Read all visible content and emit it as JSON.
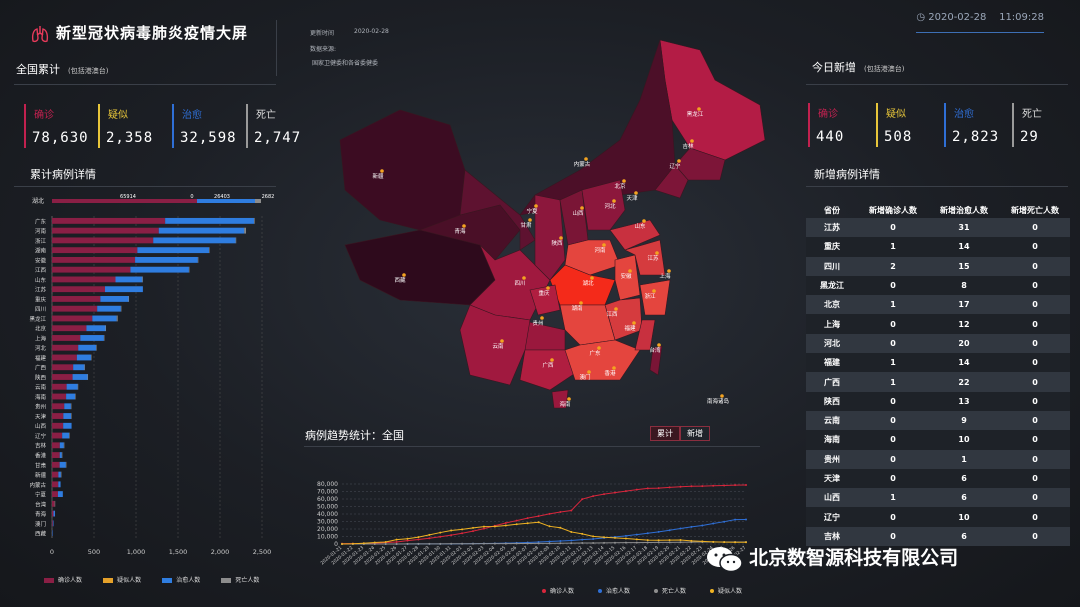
{
  "header": {
    "title": "新型冠状病毒肺炎疫情大屏",
    "update_label": "更新时间",
    "update_time": "2020-02-28",
    "source_label": "数据来源:",
    "source_value": "国家卫健委和各省委健委",
    "clock": "2020-02-28    11:09:28"
  },
  "national": {
    "title": "全国累计",
    "subtitle": "(包括港澳台)",
    "stats": [
      {
        "label": "确诊",
        "value": "78,630",
        "color": "#c2214f"
      },
      {
        "label": "疑似",
        "value": "2,358",
        "color": "#e8c63a"
      },
      {
        "label": "治愈",
        "value": "32,598",
        "color": "#2f6fd6"
      },
      {
        "label": "死亡",
        "value": "2,747",
        "color": "#9a9a9a"
      }
    ]
  },
  "today": {
    "title": "今日新增",
    "subtitle": "(包括港澳台)",
    "stats": [
      {
        "label": "确诊",
        "value": "440",
        "color": "#c2214f"
      },
      {
        "label": "疑似",
        "value": "508",
        "color": "#e8c63a"
      },
      {
        "label": "治愈",
        "value": "2,823",
        "color": "#2f6fd6"
      },
      {
        "label": "死亡",
        "value": "29",
        "color": "#9a9a9a"
      }
    ]
  },
  "bar_panel": {
    "title": "累计病例详情",
    "hubei_label": "湖北",
    "hubei_confirmed": "65914",
    "hubei_suspect": "0",
    "hubei_cured": "26403",
    "hubei_dead": "2682",
    "legend": [
      "确诊人数",
      "疑似人数",
      "治愈人数",
      "死亡人数"
    ]
  },
  "chart_data": [
    {
      "type": "bar",
      "orientation": "horizontal",
      "stacked": true,
      "title": "累计病例详情",
      "categories": [
        "广东",
        "河南",
        "浙江",
        "湖南",
        "安徽",
        "江西",
        "山东",
        "江苏",
        "重庆",
        "四川",
        "黑龙江",
        "北京",
        "上海",
        "河北",
        "福建",
        "广西",
        "陕西",
        "云南",
        "海南",
        "贵州",
        "天津",
        "山西",
        "辽宁",
        "吉林",
        "香港",
        "甘肃",
        "新疆",
        "内蒙古",
        "宁夏",
        "台湾",
        "青海",
        "澳门",
        "西藏"
      ],
      "xticks": [
        "0",
        "500",
        "1,000",
        "1,500",
        "2,000",
        "2,500"
      ],
      "xlim": [
        0,
        2500
      ],
      "series": [
        {
          "name": "确诊人数",
          "color": "#8a1f45",
          "values": [
            1347,
            1271,
            1205,
            1016,
            989,
            934,
            756,
            631,
            576,
            538,
            480,
            410,
            337,
            312,
            296,
            252,
            245,
            174,
            168,
            146,
            135,
            133,
            121,
            93,
            92,
            91,
            76,
            75,
            71,
            32,
            18,
            10,
            1
          ]
        },
        {
          "name": "疑似人数",
          "color": "#e5a12a",
          "values": [
            0,
            0,
            0,
            0,
            0,
            0,
            0,
            0,
            0,
            0,
            0,
            0,
            0,
            0,
            0,
            0,
            0,
            0,
            0,
            0,
            0,
            0,
            0,
            0,
            0,
            0,
            0,
            0,
            0,
            0,
            0,
            0,
            0
          ]
        },
        {
          "name": "治愈人数",
          "color": "#2f7de0",
          "values": [
            1059,
            1018,
            982,
            853,
            747,
            696,
            320,
            451,
            335,
            282,
            290,
            227,
            281,
            214,
            168,
            134,
            178,
            132,
            107,
            79,
            92,
            100,
            83,
            48,
            25,
            74,
            30,
            27,
            58,
            0,
            18,
            8,
            1
          ]
        },
        {
          "name": "死亡人数",
          "color": "#8c8c8c",
          "values": [
            7,
            20,
            1,
            4,
            6,
            1,
            6,
            0,
            6,
            3,
            12,
            6,
            3,
            6,
            1,
            2,
            1,
            2,
            4,
            2,
            3,
            0,
            1,
            1,
            2,
            2,
            3,
            0,
            0,
            1,
            0,
            0,
            0
          ]
        }
      ]
    },
    {
      "type": "line",
      "title": "病例趋势统计：全国",
      "x": [
        "2020-01-21",
        "2020-01-22",
        "2020-01-23",
        "2020-01-24",
        "2020-01-25",
        "2020-01-26",
        "2020-01-27",
        "2020-01-28",
        "2020-01-29",
        "2020-01-30",
        "2020-01-31",
        "2020-02-01",
        "2020-02-02",
        "2020-02-03",
        "2020-02-04",
        "2020-02-05",
        "2020-02-06",
        "2020-02-07",
        "2020-02-08",
        "2020-02-09",
        "2020-02-10",
        "2020-02-11",
        "2020-02-12",
        "2020-02-13",
        "2020-02-14",
        "2020-02-15",
        "2020-02-16",
        "2020-02-17",
        "2020-02-18",
        "2020-02-19",
        "2020-02-20",
        "2020-02-21",
        "2020-02-22",
        "2020-02-23",
        "2020-02-24",
        "2020-02-25",
        "2020-02-26",
        "2020-02-27"
      ],
      "yticks": [
        "0",
        "10,000",
        "20,000",
        "30,000",
        "40,000",
        "50,000",
        "60,000",
        "70,000",
        "80,000"
      ],
      "ylim": [
        0,
        80000
      ],
      "legend": [
        "确诊人数",
        "治愈人数",
        "死亡人数",
        "疑似人数"
      ],
      "series": [
        {
          "name": "确诊人数",
          "color": "#d8263c",
          "values": [
            440,
            571,
            830,
            1287,
            1975,
            2744,
            4515,
            5974,
            7711,
            9692,
            11791,
            14380,
            17205,
            20438,
            24324,
            28018,
            31161,
            34546,
            37198,
            40171,
            42638,
            44653,
            59804,
            63851,
            66492,
            68500,
            70548,
            72436,
            74185,
            74576,
            75465,
            76288,
            76936,
            77150,
            77658,
            78064,
            78497,
            78630
          ]
        },
        {
          "name": "治愈人数",
          "color": "#2f6fd6",
          "values": [
            28,
            28,
            34,
            38,
            49,
            51,
            60,
            103,
            124,
            171,
            243,
            328,
            475,
            632,
            892,
            1153,
            1540,
            2050,
            2649,
            3281,
            3996,
            4740,
            5911,
            6723,
            8096,
            9419,
            10844,
            12552,
            14376,
            16155,
            18264,
            20659,
            22888,
            24734,
            27323,
            29745,
            32495,
            32598
          ]
        },
        {
          "name": "死亡人数",
          "color": "#8f8f8f",
          "values": [
            9,
            17,
            25,
            41,
            56,
            80,
            106,
            132,
            170,
            213,
            259,
            304,
            361,
            425,
            490,
            563,
            636,
            722,
            811,
            908,
            1016,
            1113,
            1367,
            1380,
            1523,
            1665,
            1770,
            1868,
            2004,
            2118,
            2236,
            2345,
            2442,
            2592,
            2663,
            2715,
            2744,
            2747
          ]
        },
        {
          "name": "疑似人数",
          "color": "#f0b323",
          "values": [
            37,
            393,
            1072,
            1965,
            2684,
            5794,
            6973,
            9239,
            12167,
            15238,
            17988,
            19544,
            21558,
            23214,
            23260,
            24702,
            26359,
            27657,
            28942,
            23589,
            21675,
            16067,
            13435,
            10109,
            8969,
            8228,
            7264,
            6242,
            5248,
            4922,
            5206,
            5365,
            4148,
            3434,
            2824,
            2491,
            2358,
            2358
          ]
        }
      ]
    }
  ],
  "map": {
    "labels": [
      "黑龙江",
      "吉林",
      "辽宁",
      "内蒙古",
      "北京",
      "天津",
      "河北",
      "山西",
      "山东",
      "宁夏",
      "甘肃",
      "青海",
      "陕西",
      "河南",
      "江苏",
      "新疆",
      "西藏",
      "四川",
      "湖北",
      "安徽",
      "上海",
      "重庆",
      "浙江",
      "湖南",
      "江西",
      "贵州",
      "福建",
      "云南",
      "广西",
      "广东",
      "台湾",
      "香港",
      "澳门",
      "海南",
      "南海诸岛"
    ]
  },
  "trend": {
    "title": "病例趋势统计：",
    "scope": "全国",
    "toggle_cumulative": "累计",
    "toggle_new": "新增"
  },
  "new_table": {
    "title": "新增病例详情",
    "headers": [
      "省份",
      "新增确诊人数",
      "新增治愈人数",
      "新增死亡人数"
    ],
    "rows": [
      [
        "江苏",
        "0",
        "31",
        "0"
      ],
      [
        "重庆",
        "1",
        "14",
        "0"
      ],
      [
        "四川",
        "2",
        "15",
        "0"
      ],
      [
        "黑龙江",
        "0",
        "8",
        "0"
      ],
      [
        "北京",
        "1",
        "17",
        "0"
      ],
      [
        "上海",
        "0",
        "12",
        "0"
      ],
      [
        "河北",
        "0",
        "20",
        "0"
      ],
      [
        "福建",
        "1",
        "14",
        "0"
      ],
      [
        "广西",
        "1",
        "22",
        "0"
      ],
      [
        "陕西",
        "0",
        "13",
        "0"
      ],
      [
        "云南",
        "0",
        "9",
        "0"
      ],
      [
        "海南",
        "0",
        "10",
        "0"
      ],
      [
        "贵州",
        "0",
        "1",
        "0"
      ],
      [
        "天津",
        "0",
        "6",
        "0"
      ],
      [
        "山西",
        "1",
        "6",
        "0"
      ],
      [
        "辽宁",
        "0",
        "10",
        "0"
      ],
      [
        "吉林",
        "0",
        "6",
        "0"
      ]
    ]
  },
  "watermark": "北京数智源科技有限公司"
}
